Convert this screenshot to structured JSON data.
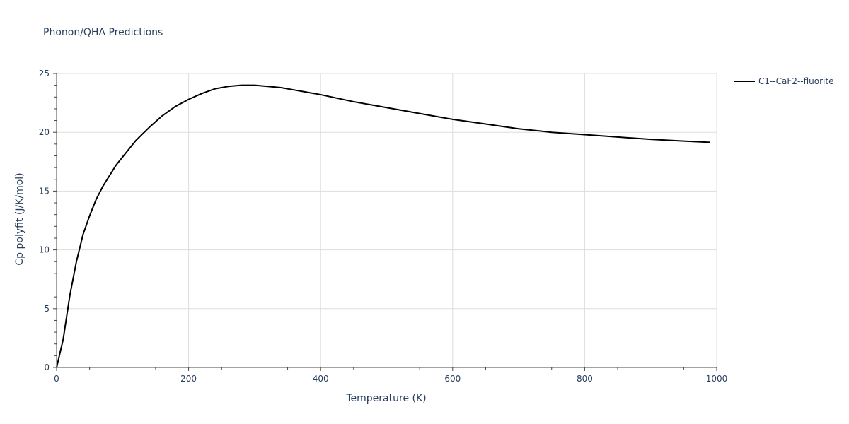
{
  "chart_data": {
    "type": "line",
    "title": "Phonon/QHA Predictions",
    "xlabel": "Temperature (K)",
    "ylabel": "Cp polyfit (J/K/mol)",
    "xlim": [
      0,
      1000
    ],
    "ylim": [
      0,
      25
    ],
    "x_ticks": [
      0,
      200,
      400,
      600,
      800,
      1000
    ],
    "y_ticks": [
      0,
      5,
      10,
      15,
      20,
      25
    ],
    "grid": true,
    "legend_position": "top-right",
    "series": [
      {
        "name": "C1--CaF2--fluorite",
        "color": "#000000",
        "x": [
          0,
          10,
          20,
          30,
          40,
          50,
          60,
          70,
          80,
          90,
          100,
          120,
          140,
          160,
          180,
          200,
          220,
          240,
          260,
          280,
          300,
          320,
          340,
          360,
          380,
          400,
          450,
          500,
          550,
          600,
          650,
          700,
          750,
          800,
          850,
          900,
          950,
          990
        ],
        "y": [
          0,
          2.4,
          6.1,
          9.0,
          11.3,
          12.9,
          14.3,
          15.4,
          16.3,
          17.2,
          17.9,
          19.3,
          20.4,
          21.4,
          22.2,
          22.8,
          23.3,
          23.7,
          23.9,
          24.0,
          24.0,
          23.9,
          23.8,
          23.6,
          23.4,
          23.2,
          22.6,
          22.1,
          21.6,
          21.1,
          20.7,
          20.3,
          20.0,
          19.8,
          19.6,
          19.4,
          19.25,
          19.15
        ]
      }
    ]
  }
}
